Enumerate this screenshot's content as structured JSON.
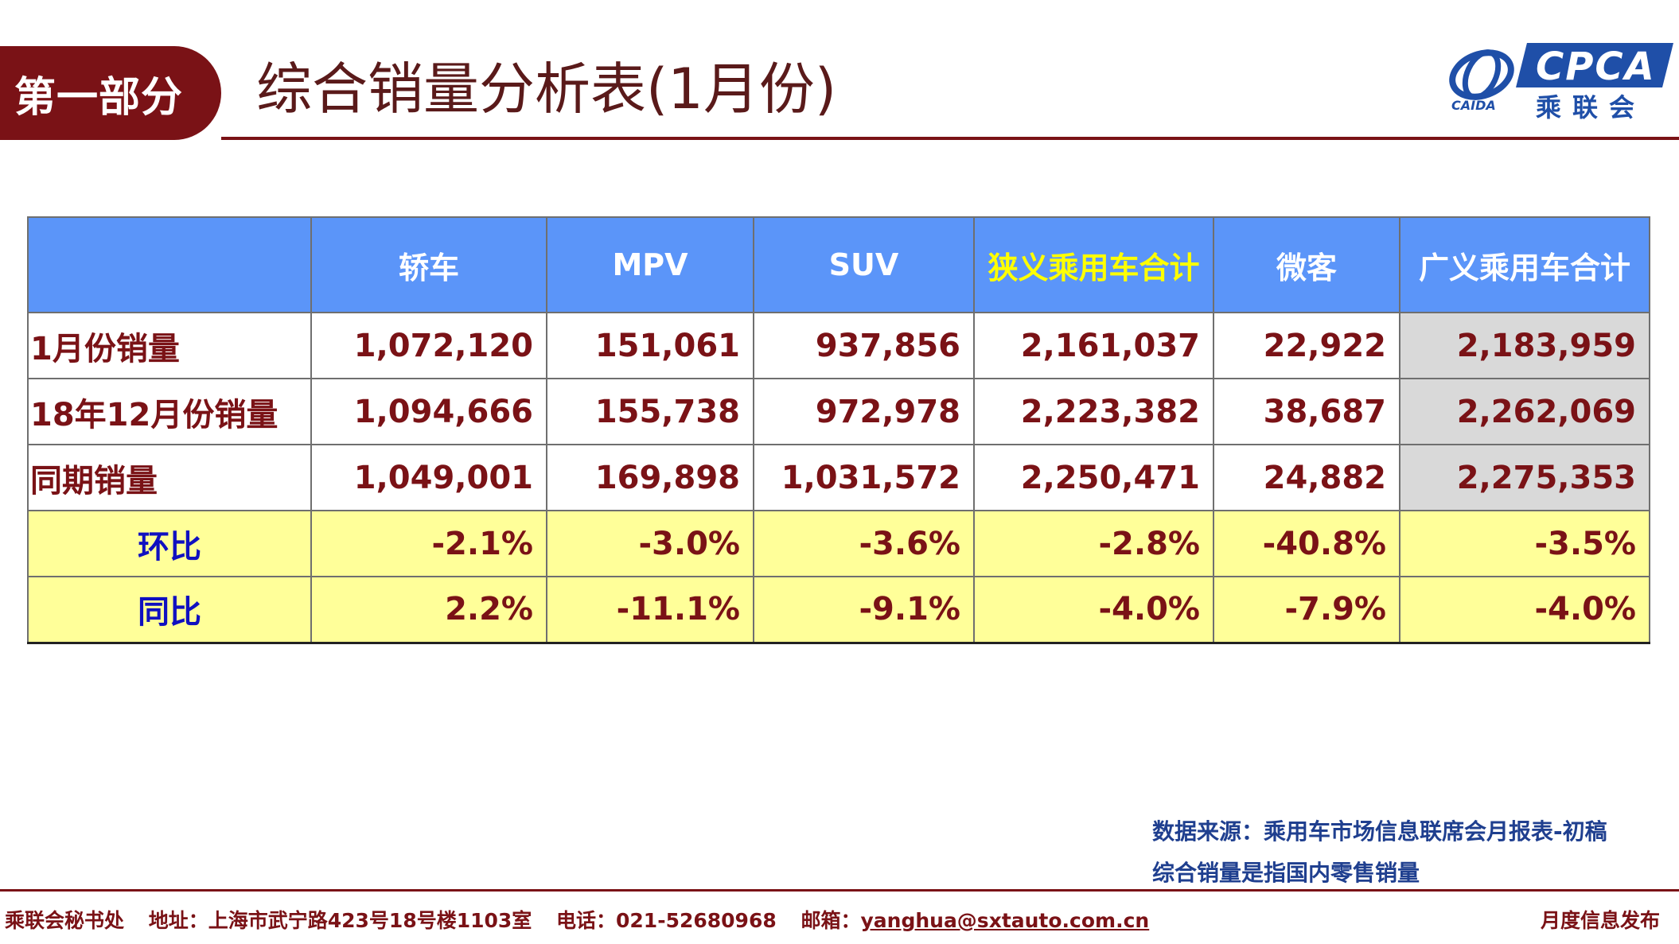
{
  "header": {
    "section_label": "第一部分",
    "title": "综合销量分析表(1月份)",
    "logo_text": "CPCA",
    "logo_subtext": "乘联会",
    "logo_emblem_text": "CAIDA"
  },
  "table": {
    "columns": [
      "",
      "轿车",
      "MPV",
      "SUV",
      "狭义乘用车合计",
      "微客",
      "广义乘用车合计"
    ],
    "rows": [
      {
        "label": "1月份销量",
        "values": [
          "1,072,120",
          "151,061",
          "937,856",
          "2,161,037",
          "22,922",
          "2,183,959"
        ]
      },
      {
        "label": "18年12月份销量",
        "values": [
          "1,094,666",
          "155,738",
          "972,978",
          "2,223,382",
          "38,687",
          "2,262,069"
        ]
      },
      {
        "label": "同期销量",
        "values": [
          "1,049,001",
          "169,898",
          "1,031,572",
          "2,250,471",
          "24,882",
          "2,275,353"
        ]
      },
      {
        "label": "环比",
        "values": [
          "-2.1%",
          "-3.0%",
          "-3.6%",
          "-2.8%",
          "-40.8%",
          "-3.5%"
        ]
      },
      {
        "label": "同比",
        "values": [
          "2.2%",
          "-11.1%",
          "-9.1%",
          "-4.0%",
          "-7.9%",
          "-4.0%"
        ]
      }
    ]
  },
  "notes": {
    "source": "数据来源：乘用车市场信息联席会月报表-初稿",
    "definition": "综合销量是指国内零售销量"
  },
  "footer": {
    "org": "乘联会秘书处",
    "address": "地址：上海市武宁路423号18号楼1103室",
    "phone": "电话：021-52680968",
    "email_label": "邮箱：",
    "email": "yanghua@sxtauto.com.cn",
    "release": "月度信息发布"
  },
  "colors": {
    "brand_dark_red": "#7a1216",
    "header_blue": "#5b95f9",
    "highlight_yellow": "#ffff99",
    "logo_blue": "#1f4fa8"
  }
}
